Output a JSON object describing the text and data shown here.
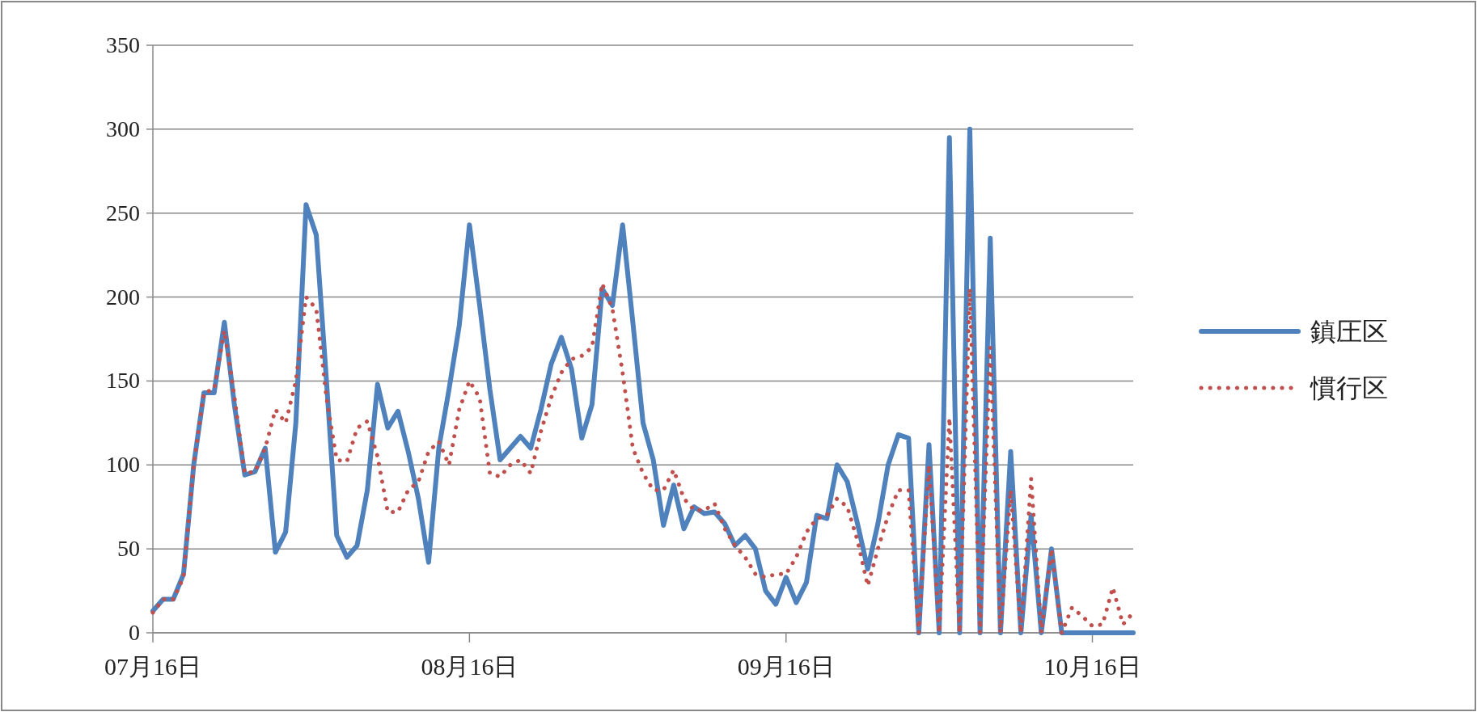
{
  "chart_data": {
    "type": "line",
    "x": [
      "--07-16",
      "--07-17",
      "--07-18",
      "--07-19",
      "--07-20",
      "--07-21",
      "--07-22",
      "--07-23",
      "--07-24",
      "--07-25",
      "--07-26",
      "--07-27",
      "--07-28",
      "--07-29",
      "--07-30",
      "--07-31",
      "--08-01",
      "--08-02",
      "--08-03",
      "--08-04",
      "--08-05",
      "--08-06",
      "--08-07",
      "--08-08",
      "--08-09",
      "--08-10",
      "--08-11",
      "--08-12",
      "--08-13",
      "--08-14",
      "--08-15",
      "--08-16",
      "--08-17",
      "--08-18",
      "--08-19",
      "--08-20",
      "--08-21",
      "--08-22",
      "--08-23",
      "--08-24",
      "--08-25",
      "--08-26",
      "--08-27",
      "--08-28",
      "--08-29",
      "--08-30",
      "--08-31",
      "--09-01",
      "--09-02",
      "--09-03",
      "--09-04",
      "--09-05",
      "--09-06",
      "--09-07",
      "--09-08",
      "--09-09",
      "--09-10",
      "--09-11",
      "--09-12",
      "--09-13",
      "--09-14",
      "--09-15",
      "--09-16",
      "--09-17",
      "--09-18",
      "--09-19",
      "--09-20",
      "--09-21",
      "--09-22",
      "--09-23",
      "--09-24",
      "--09-25",
      "--09-26",
      "--09-27",
      "--09-28",
      "--09-29",
      "--09-30",
      "--10-01",
      "--10-02",
      "--10-03",
      "--10-04",
      "--10-05",
      "--10-06",
      "--10-07",
      "--10-08",
      "--10-09",
      "--10-10",
      "--10-11",
      "--10-12",
      "--10-13",
      "--10-14",
      "--10-15",
      "--10-16",
      "--10-17",
      "--10-18",
      "--10-19",
      "--10-20"
    ],
    "series": [
      {
        "name": "鎮圧区",
        "color": "#4f81bd",
        "line_style": "solid",
        "values": [
          13,
          20,
          20,
          35,
          100,
          143,
          143,
          185,
          135,
          94,
          96,
          110,
          48,
          60,
          125,
          255,
          237,
          150,
          58,
          45,
          52,
          85,
          148,
          122,
          132,
          108,
          80,
          42,
          110,
          145,
          183,
          243,
          195,
          145,
          103,
          110,
          117,
          110,
          133,
          160,
          176,
          157,
          116,
          136,
          205,
          195,
          243,
          185,
          125,
          103,
          64,
          88,
          62,
          75,
          71,
          72,
          65,
          52,
          58,
          50,
          25,
          17,
          33,
          18,
          30,
          70,
          68,
          100,
          90,
          65,
          38,
          65,
          100,
          118,
          116,
          0,
          112,
          0,
          295,
          0,
          300,
          0,
          235,
          0,
          108,
          0,
          70,
          0,
          50,
          0,
          0,
          0,
          0,
          0,
          0,
          0,
          0
        ]
      },
      {
        "name": "慣行区",
        "color": "#c0504d",
        "line_style": "dotted",
        "values": [
          12,
          20,
          20,
          33,
          100,
          143,
          145,
          180,
          140,
          95,
          96,
          110,
          133,
          125,
          150,
          200,
          193,
          140,
          103,
          102,
          122,
          126,
          105,
          72,
          72,
          85,
          90,
          108,
          114,
          100,
          133,
          150,
          140,
          95,
          93,
          100,
          103,
          95,
          120,
          140,
          155,
          163,
          165,
          170,
          208,
          193,
          155,
          110,
          95,
          85,
          85,
          97,
          80,
          73,
          73,
          77,
          62,
          52,
          45,
          35,
          33,
          35,
          35,
          45,
          60,
          68,
          70,
          80,
          75,
          55,
          28,
          50,
          70,
          85,
          85,
          0,
          100,
          0,
          128,
          0,
          205,
          0,
          170,
          0,
          85,
          0,
          92,
          0,
          50,
          0,
          15,
          10,
          4,
          5,
          27,
          5,
          12
        ]
      }
    ],
    "xlim": [
      "--07-16",
      "--10-20"
    ],
    "xticks": [
      {
        "value": "--07-16",
        "label": "07月16日"
      },
      {
        "value": "--08-16",
        "label": "08月16日"
      },
      {
        "value": "--09-16",
        "label": "09月16日"
      },
      {
        "value": "--10-16",
        "label": "10月16日"
      }
    ],
    "ylim": [
      0,
      350
    ],
    "yticks": [
      0,
      50,
      100,
      150,
      200,
      250,
      300,
      350
    ],
    "grid": "y",
    "legend": "right"
  }
}
